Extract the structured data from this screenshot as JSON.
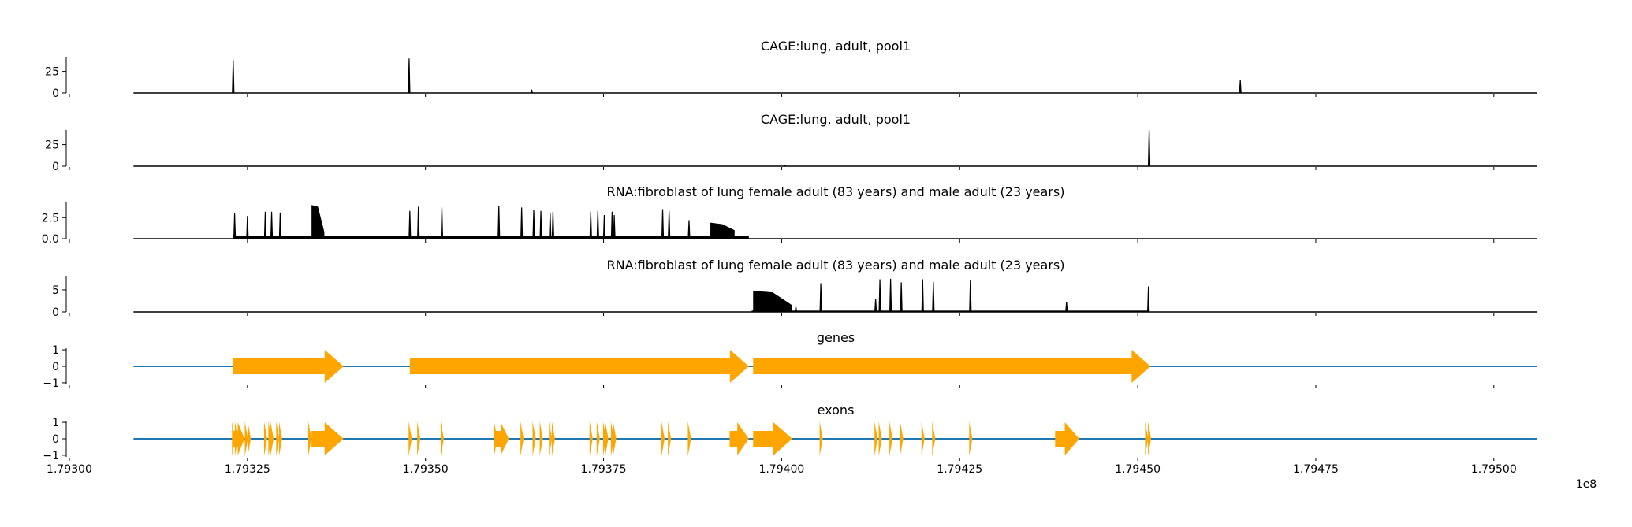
{
  "chart_data": [
    {
      "type": "area",
      "title": "CAGE:lung, adult, pool1",
      "yticks": [
        0,
        25
      ],
      "ytick_labels": [
        "0",
        "25"
      ],
      "ylim": [
        0,
        42
      ],
      "baseline": 0.3,
      "peaks": [
        [
          179323.0,
          38
        ],
        [
          179347.7,
          40
        ],
        [
          179364.9,
          4
        ],
        [
          179464.4,
          15
        ]
      ]
    },
    {
      "type": "area",
      "title": "CAGE:lung, adult, pool1",
      "yticks": [
        0,
        25
      ],
      "ytick_labels": [
        "0",
        "25"
      ],
      "ylim": [
        0,
        42
      ],
      "baseline": 0.3,
      "peaks": [
        [
          179400.5,
          1
        ],
        [
          179451.6,
          42
        ]
      ]
    },
    {
      "type": "area",
      "title": "RNA:fibroblast of lung female adult (83 years) and male adult (23 years)",
      "yticks": [
        0,
        2.5
      ],
      "ytick_labels": [
        "0.0",
        "2.5"
      ],
      "ylim": [
        0,
        4.3
      ],
      "baseline": 0.02,
      "region": [
        179323.0,
        179395.4
      ],
      "region_level": 0.3,
      "blocks": [
        [
          179334.0,
          179335.8,
          4.0,
          0.8
        ],
        [
          179390.0,
          179393.4,
          1.9,
          1.0
        ]
      ],
      "peaks": [
        [
          179323.2,
          3.0
        ],
        [
          179325.0,
          2.7
        ],
        [
          179327.5,
          3.2
        ],
        [
          179328.4,
          3.2
        ],
        [
          179329.6,
          3.1
        ],
        [
          179347.8,
          3.3
        ],
        [
          179349.0,
          3.8
        ],
        [
          179352.3,
          3.7
        ],
        [
          179360.3,
          3.9
        ],
        [
          179363.5,
          3.7
        ],
        [
          179365.2,
          3.4
        ],
        [
          179366.2,
          3.3
        ],
        [
          179367.5,
          3.1
        ],
        [
          179367.9,
          3.2
        ],
        [
          179373.2,
          3.2
        ],
        [
          179374.2,
          3.3
        ],
        [
          179375.1,
          2.8
        ],
        [
          179376.2,
          3.2
        ],
        [
          179376.5,
          2.8
        ],
        [
          179383.3,
          3.5
        ],
        [
          179384.2,
          3.3
        ],
        [
          179387.0,
          2.2
        ]
      ]
    },
    {
      "type": "area",
      "title": "RNA:fibroblast of lung female adult (83 years) and male adult (23 years)",
      "yticks": [
        0,
        5
      ],
      "ytick_labels": [
        "0",
        "5"
      ],
      "ylim": [
        0,
        8.2
      ],
      "baseline": 0.05,
      "region": [
        179395.8,
        179451.6
      ],
      "region_level": 0.3,
      "blocks": [
        [
          179396.0,
          179401.5,
          4.8,
          1.5
        ]
      ],
      "peaks": [
        [
          179402.0,
          1.2
        ],
        [
          179405.5,
          6.5
        ],
        [
          179413.2,
          3.0
        ],
        [
          179413.8,
          7.4
        ],
        [
          179415.3,
          7.5
        ],
        [
          179416.8,
          6.7
        ],
        [
          179419.8,
          7.4
        ],
        [
          179421.3,
          6.8
        ],
        [
          179426.5,
          7.2
        ],
        [
          179440.0,
          2.3
        ],
        [
          179451.5,
          5.8
        ]
      ]
    },
    {
      "type": "line",
      "title": "genes",
      "yticks": [
        -1,
        0,
        1
      ],
      "ytick_labels": [
        "−1",
        "0",
        "1"
      ],
      "ylim": [
        -1.1,
        1.1
      ],
      "line_color": "#1f77b4",
      "feature_color": "#ffa500",
      "features": [
        [
          179323.0,
          179338.5
        ],
        [
          179347.8,
          179395.4
        ],
        [
          179396.0,
          179451.8
        ]
      ]
    },
    {
      "type": "line",
      "title": "exons",
      "yticks": [
        -1,
        0,
        1
      ],
      "ytick_labels": [
        "−1",
        "0",
        "1"
      ],
      "ylim": [
        -1.1,
        1.1
      ],
      "line_color": "#1f77b4",
      "feature_color": "#ffa500",
      "features": [
        [
          179323.0,
          179324.6
        ],
        [
          179334.0,
          179338.5
        ],
        [
          179359.8,
          179361.7
        ],
        [
          179392.7,
          179395.4
        ],
        [
          179396.0,
          179401.5
        ],
        [
          179438.4,
          179441.8
        ]
      ],
      "marks": [
        179323.0,
        179323.4,
        179324.8,
        179325.2,
        179327.5,
        179328.1,
        179328.4,
        179329.2,
        179329.6,
        179333.7,
        179347.8,
        179349.0,
        179352.3,
        179359.8,
        179363.5,
        179365.2,
        179366.2,
        179367.5,
        179367.9,
        179373.2,
        179374.2,
        179375.1,
        179375.4,
        179376.2,
        179376.5,
        179383.3,
        179384.2,
        179387.0,
        179405.5,
        179413.2,
        179413.8,
        179415.3,
        179416.8,
        179419.8,
        179421.3,
        179426.5,
        179451.2,
        179451.6
      ]
    }
  ],
  "xaxis": {
    "xlim": [
      179300.0,
      179506.0
    ],
    "data_range": [
      179309.0,
      179506.0
    ],
    "ticks": [
      179300,
      179325,
      179350,
      179375,
      179400,
      179425,
      179450,
      179475,
      179500
    ],
    "tick_labels": [
      "1.79300",
      "1.79325",
      "1.79350",
      "1.79375",
      "1.79400",
      "1.79425",
      "1.79450",
      "1.79475",
      "1.79500"
    ],
    "offset_label": "1e8"
  }
}
